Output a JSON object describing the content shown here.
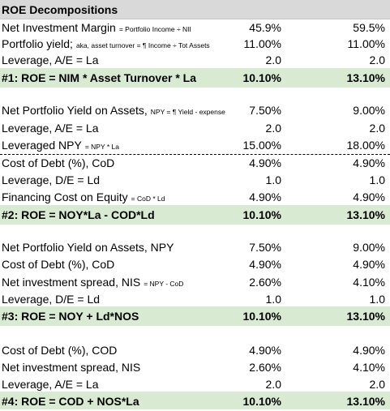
{
  "title": "ROE Decompositions",
  "rows": [
    {
      "label": "Net Investment Margin",
      "note": "= Portfolio Income ÷ NII",
      "v1": "45.9%",
      "v2": "59.5%"
    },
    {
      "label": "Portfolio yield;",
      "note": "aka, asset turnover = ¶ Income ÷ Tot Assets",
      "v1": "11.00%",
      "v2": "11.00%"
    },
    {
      "label": "Leverage, A/E = La",
      "note": "",
      "v1": "2.0",
      "v2": "2.0"
    },
    {
      "label": "#1: ROE = NIM * Asset Turnover * La",
      "note": "",
      "v1": "10.10%",
      "v2": "13.10%"
    },
    {
      "label": "Net Portfolio Yield on Assets,",
      "note": "NPY = ¶ Yield - expense",
      "v1": "7.50%",
      "v2": "9.00%"
    },
    {
      "label": "Leverage, A/E = La",
      "note": "",
      "v1": "2.0",
      "v2": "2.0"
    },
    {
      "label": "Leveraged NPY",
      "note": "= NPY * La",
      "v1": "15.00%",
      "v2": "18.00%"
    },
    {
      "label": "Cost of Debt (%), CoD",
      "note": "",
      "v1": "4.90%",
      "v2": "4.90%"
    },
    {
      "label": "Leverage, D/E = Ld",
      "note": "",
      "v1": "1.0",
      "v2": "1.0"
    },
    {
      "label": "Financing Cost on Equity",
      "note": "= CoD * Ld",
      "v1": "4.90%",
      "v2": "4.90%"
    },
    {
      "label": "#2: ROE = NOY*La - COD*Ld",
      "note": "",
      "v1": "10.10%",
      "v2": "13.10%"
    },
    {
      "label": "Net Portfolio Yield on Assets, NPY",
      "note": "",
      "v1": "7.50%",
      "v2": "9.00%"
    },
    {
      "label": "Cost of Debt (%), CoD",
      "note": "",
      "v1": "4.90%",
      "v2": "4.90%"
    },
    {
      "label": "Net investment spread, NIS",
      "note": "= NPY - CoD",
      "v1": "2.60%",
      "v2": "4.10%"
    },
    {
      "label": "Leverage, D/E = Ld",
      "note": "",
      "v1": "1.0",
      "v2": "1.0"
    },
    {
      "label": "#3: ROE = NOY + Ld*NOS",
      "note": "",
      "v1": "10.10%",
      "v2": "13.10%"
    },
    {
      "label": "Cost of Debt (%), COD",
      "note": "",
      "v1": "4.90%",
      "v2": "4.90%"
    },
    {
      "label": "Net investment spread, NIS",
      "note": "",
      "v1": "2.60%",
      "v2": "4.10%"
    },
    {
      "label": "Leverage, A/E = La",
      "note": "",
      "v1": "2.0",
      "v2": "2.0"
    },
    {
      "label": "#4: ROE = COD + NOS*La",
      "note": "",
      "v1": "10.10%",
      "v2": "13.10%"
    }
  ]
}
